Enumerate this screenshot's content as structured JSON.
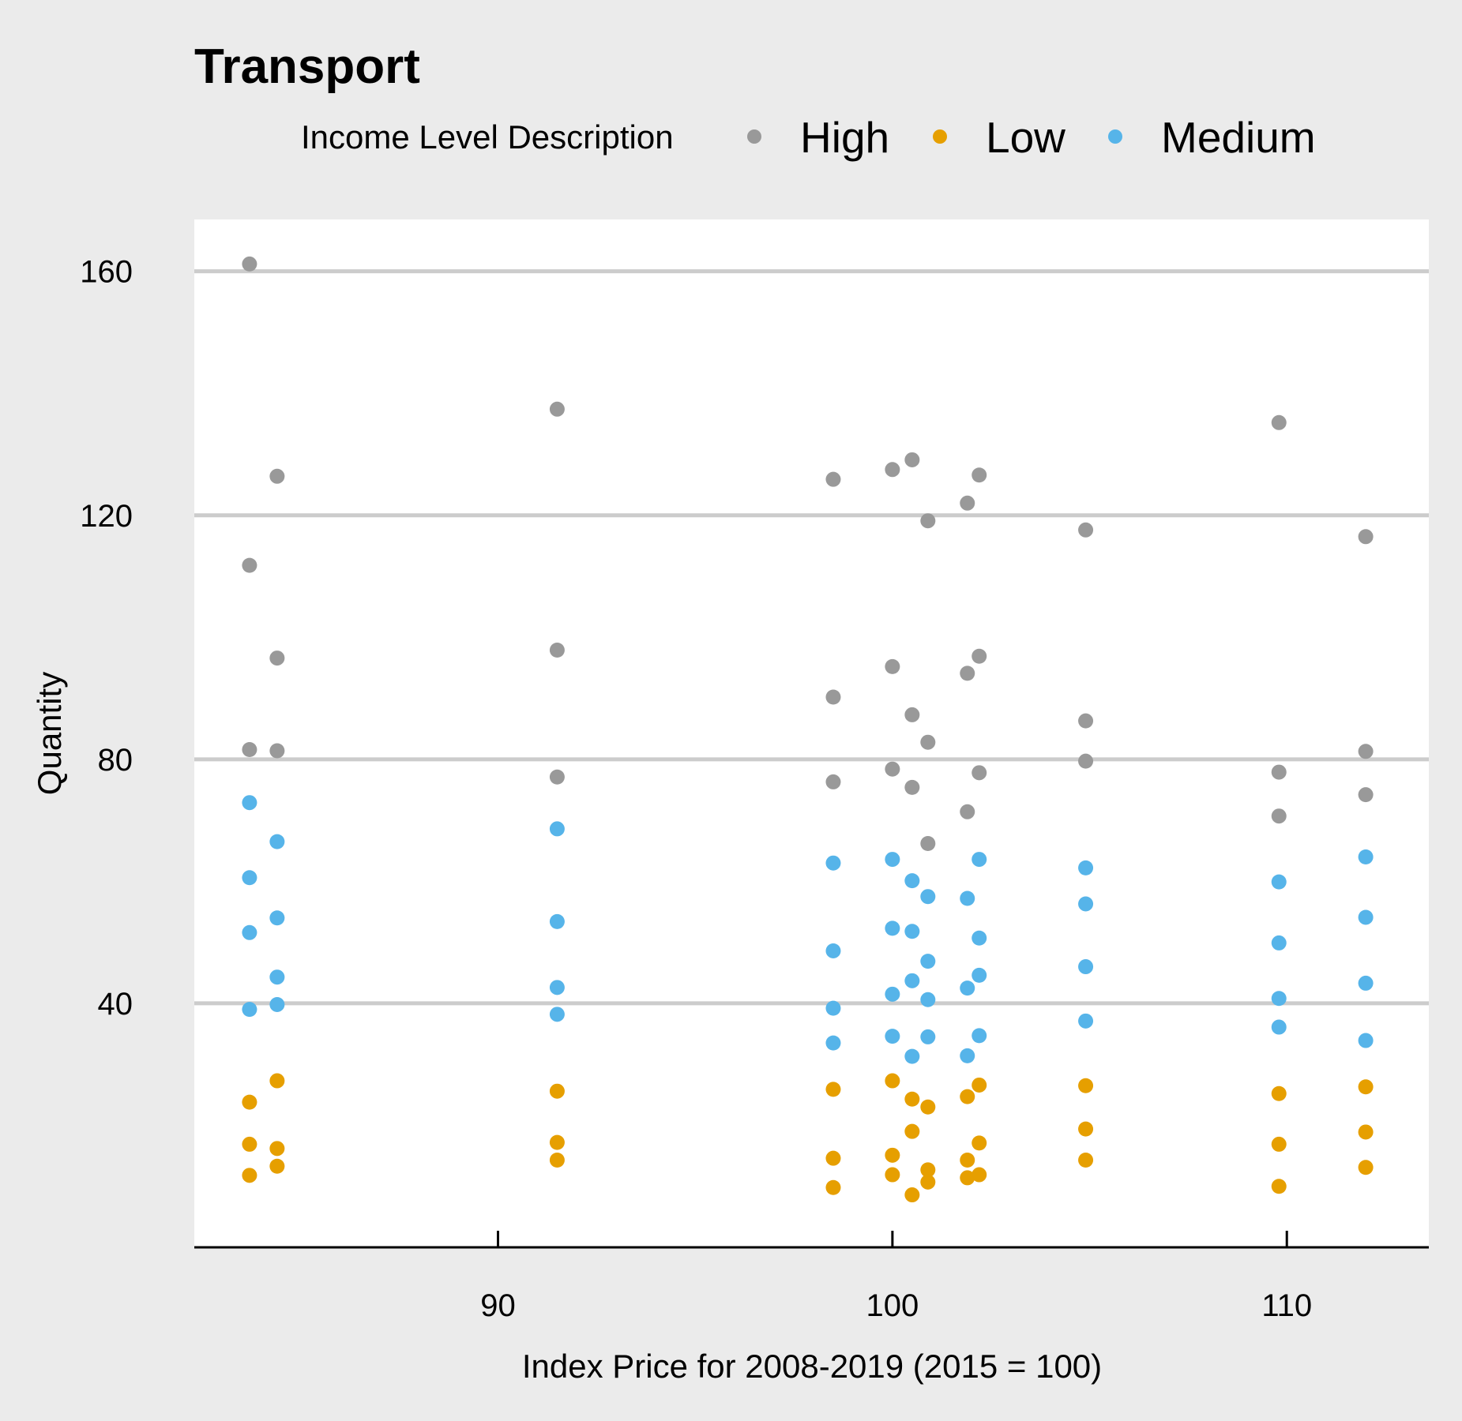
{
  "chart_data": {
    "type": "scatter",
    "title": "Transport",
    "xlabel": "Index Price for 2008-2019 (2015 = 100)",
    "ylabel": "Quantity",
    "xlim": [
      82.3,
      113.6
    ],
    "ylim": [
      0,
      168.5
    ],
    "x_ticks": [
      90,
      100,
      110
    ],
    "y_ticks": [
      40,
      80,
      120,
      160
    ],
    "grid": "horizontal",
    "legend_title": "Income Level Description",
    "legend_position": "top",
    "series": [
      {
        "name": "High",
        "color": "#999999",
        "points": [
          [
            83.7,
            161.2
          ],
          [
            84.4,
            126.4
          ],
          [
            83.7,
            111.8
          ],
          [
            84.4,
            96.6
          ],
          [
            83.7,
            81.6
          ],
          [
            84.4,
            81.4
          ],
          [
            91.5,
            137.4
          ],
          [
            91.5,
            97.9
          ],
          [
            91.5,
            77.1
          ],
          [
            98.5,
            125.9
          ],
          [
            98.5,
            90.2
          ],
          [
            98.5,
            76.3
          ],
          [
            100.0,
            127.5
          ],
          [
            100.0,
            95.2
          ],
          [
            100.0,
            78.4
          ],
          [
            100.5,
            129.1
          ],
          [
            100.5,
            87.3
          ],
          [
            100.5,
            75.4
          ],
          [
            100.9,
            119.1
          ],
          [
            100.9,
            82.8
          ],
          [
            100.9,
            66.2
          ],
          [
            101.9,
            122.0
          ],
          [
            101.9,
            94.1
          ],
          [
            101.9,
            71.4
          ],
          [
            102.2,
            126.6
          ],
          [
            102.2,
            96.9
          ],
          [
            102.2,
            77.8
          ],
          [
            104.9,
            117.6
          ],
          [
            104.9,
            86.3
          ],
          [
            104.9,
            79.7
          ],
          [
            109.8,
            135.2
          ],
          [
            109.8,
            77.9
          ],
          [
            109.8,
            70.7
          ],
          [
            112.0,
            116.5
          ],
          [
            112.0,
            81.3
          ],
          [
            112.0,
            74.2
          ]
        ]
      },
      {
        "name": "Low",
        "color": "#E69F00",
        "points": [
          [
            83.7,
            23.8
          ],
          [
            83.7,
            16.9
          ],
          [
            83.7,
            11.8
          ],
          [
            84.4,
            27.3
          ],
          [
            84.4,
            16.2
          ],
          [
            84.4,
            13.3
          ],
          [
            91.5,
            25.6
          ],
          [
            91.5,
            17.2
          ],
          [
            91.5,
            14.3
          ],
          [
            98.5,
            25.9
          ],
          [
            98.5,
            14.6
          ],
          [
            98.5,
            9.8
          ],
          [
            100.0,
            27.3
          ],
          [
            100.0,
            15.1
          ],
          [
            100.0,
            11.9
          ],
          [
            100.5,
            24.3
          ],
          [
            100.5,
            19.0
          ],
          [
            100.5,
            8.6
          ],
          [
            100.9,
            23.0
          ],
          [
            100.9,
            12.7
          ],
          [
            100.9,
            10.7
          ],
          [
            101.9,
            24.7
          ],
          [
            101.9,
            14.3
          ],
          [
            101.9,
            11.4
          ],
          [
            102.2,
            26.6
          ],
          [
            102.2,
            17.1
          ],
          [
            102.2,
            11.9
          ],
          [
            104.9,
            26.5
          ],
          [
            104.9,
            19.4
          ],
          [
            104.9,
            14.3
          ],
          [
            109.8,
            25.2
          ],
          [
            109.8,
            16.9
          ],
          [
            109.8,
            10.0
          ],
          [
            112.0,
            26.3
          ],
          [
            112.0,
            18.9
          ],
          [
            112.0,
            13.1
          ]
        ]
      },
      {
        "name": "Medium",
        "color": "#56B4E9",
        "points": [
          [
            83.7,
            72.9
          ],
          [
            83.7,
            60.6
          ],
          [
            83.7,
            51.6
          ],
          [
            83.7,
            39.0
          ],
          [
            84.4,
            66.5
          ],
          [
            84.4,
            54.0
          ],
          [
            84.4,
            44.3
          ],
          [
            84.4,
            39.8
          ],
          [
            91.5,
            68.6
          ],
          [
            91.5,
            53.4
          ],
          [
            91.5,
            42.6
          ],
          [
            91.5,
            38.2
          ],
          [
            98.5,
            63.0
          ],
          [
            98.5,
            48.6
          ],
          [
            98.5,
            39.2
          ],
          [
            98.5,
            33.5
          ],
          [
            100.0,
            63.6
          ],
          [
            100.0,
            52.3
          ],
          [
            100.0,
            41.5
          ],
          [
            100.0,
            34.6
          ],
          [
            100.5,
            60.1
          ],
          [
            100.5,
            51.8
          ],
          [
            100.5,
            43.7
          ],
          [
            100.5,
            31.3
          ],
          [
            100.9,
            57.5
          ],
          [
            100.9,
            46.9
          ],
          [
            100.9,
            40.6
          ],
          [
            100.9,
            34.5
          ],
          [
            101.9,
            57.2
          ],
          [
            101.9,
            42.5
          ],
          [
            101.9,
            31.4
          ],
          [
            102.2,
            63.6
          ],
          [
            102.2,
            50.7
          ],
          [
            102.2,
            44.6
          ],
          [
            102.2,
            34.7
          ],
          [
            104.9,
            62.2
          ],
          [
            104.9,
            56.3
          ],
          [
            104.9,
            46.0
          ],
          [
            104.9,
            37.1
          ],
          [
            109.8,
            59.9
          ],
          [
            109.8,
            49.9
          ],
          [
            109.8,
            40.8
          ],
          [
            109.8,
            36.1
          ],
          [
            112.0,
            64.0
          ],
          [
            112.0,
            54.1
          ],
          [
            112.0,
            43.3
          ],
          [
            112.0,
            33.9
          ]
        ]
      }
    ]
  }
}
